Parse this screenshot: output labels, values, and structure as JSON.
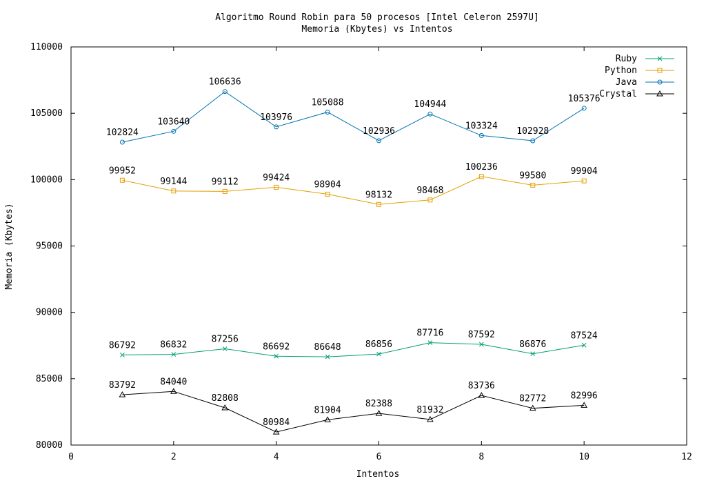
{
  "chart_data": {
    "type": "line",
    "title": "Algoritmo Round Robin para 50 procesos [Intel Celeron 2597U]",
    "subtitle": "Memoria (Kbytes) vs Intentos",
    "xlabel": "Intentos",
    "ylabel": "Memoria (Kbytes)",
    "xlim": [
      0,
      12
    ],
    "ylim": [
      80000,
      110000
    ],
    "xticks": [
      0,
      2,
      4,
      6,
      8,
      10,
      12
    ],
    "yticks": [
      80000,
      85000,
      90000,
      95000,
      100000,
      105000,
      110000
    ],
    "grid": false,
    "legend_position": "top-right",
    "x": [
      1,
      2,
      3,
      4,
      5,
      6,
      7,
      8,
      9,
      10
    ],
    "series": [
      {
        "name": "Ruby",
        "color": "#009e73",
        "marker": "cross",
        "values": [
          86792,
          86832,
          87256,
          86692,
          86648,
          86856,
          87716,
          87592,
          86876,
          87524
        ]
      },
      {
        "name": "Python",
        "color": "#e69f00",
        "marker": "square",
        "values": [
          99952,
          99144,
          99112,
          99424,
          98904,
          98132,
          98468,
          100236,
          99580,
          99904
        ]
      },
      {
        "name": "Java",
        "color": "#0072b2",
        "marker": "circle",
        "values": [
          102824,
          103640,
          106636,
          103976,
          105088,
          102936,
          104944,
          103324,
          102928,
          105376
        ]
      },
      {
        "name": "Crystal",
        "color": "#000000",
        "marker": "triangle",
        "values": [
          83792,
          84040,
          82808,
          80984,
          81904,
          82388,
          81932,
          83736,
          82772,
          82996
        ]
      }
    ]
  }
}
